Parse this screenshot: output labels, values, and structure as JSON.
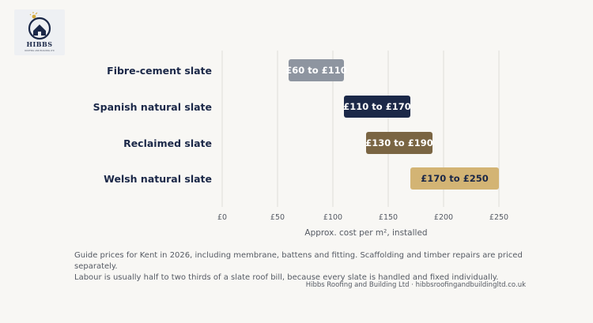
{
  "logo": {
    "brand": "HIBBS",
    "tagline": "ROOFING AND BUILDING LTD",
    "colors": {
      "navy": "#1b2848",
      "gold": "#d4a93c"
    }
  },
  "chart_data": {
    "type": "bar",
    "orientation": "horizontal",
    "style": "floating-range",
    "categories": [
      "Fibre-cement slate",
      "Spanish natural slate",
      "Reclaimed slate",
      "Welsh natural slate"
    ],
    "ranges": [
      [
        60,
        110
      ],
      [
        110,
        170
      ],
      [
        130,
        190
      ],
      [
        170,
        250
      ]
    ],
    "bar_labels": [
      "£60 to £110",
      "£110 to £170",
      "£130 to £190",
      "£170 to £250"
    ],
    "bar_colors": [
      "#8e95a0",
      "#1b2848",
      "#7a6543",
      "#d3b474"
    ],
    "label_colors": [
      "#ffffff",
      "#ffffff",
      "#ffffff",
      "#1b2848"
    ],
    "xlim": [
      0,
      250
    ],
    "xticks": [
      0,
      50,
      100,
      150,
      200,
      250
    ],
    "xtick_labels": [
      "£0",
      "£50",
      "£100",
      "£150",
      "£200",
      "£250"
    ],
    "xlabel": "Approx. cost per m², installed",
    "grid": "vertical",
    "legend": "none"
  },
  "note": {
    "line1": "Guide prices for Kent in 2026, including membrane, battens and fitting. Scaffolding and timber repairs are priced separately.",
    "line2": "Labour is usually half to two thirds of a slate roof bill, because every slate is handled and fixed individually."
  },
  "credit": "Hibbs Roofing and Building Ltd · hibbsroofingandbuildingltd.co.uk"
}
